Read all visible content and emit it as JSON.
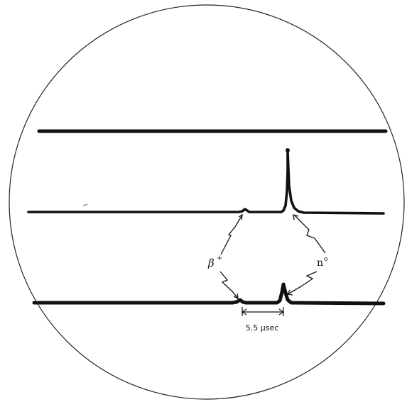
{
  "labels": {
    "beta_plus": "β",
    "beta_plus_sup": "+",
    "neutron": "n",
    "neutron_sup": "o",
    "interval": "5.5 μsec"
  },
  "colors": {
    "ink": "#111111",
    "background": "#ffffff"
  }
}
